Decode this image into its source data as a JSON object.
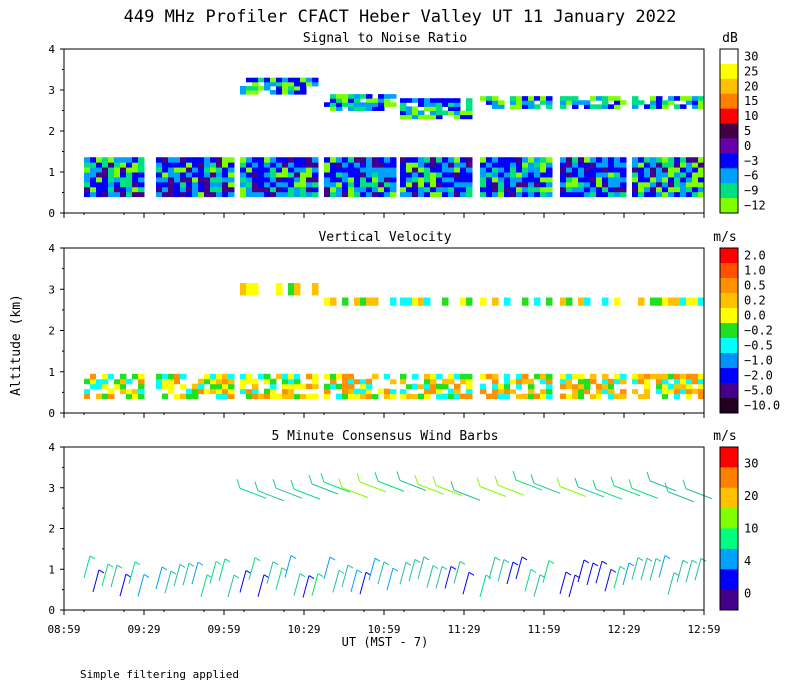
{
  "title": "449 MHz Profiler CFACT Heber Valley UT 11 January 2022",
  "y_axis_label": "Altitude (km)",
  "x_axis_label": "UT  (MST - 7)",
  "footer_note": "Simple filtering applied",
  "chart_data": [
    {
      "type": "heatmap",
      "title": "Signal to Noise Ratio",
      "colorbar_unit": "dB",
      "colorbar_labels": [
        "30",
        "25",
        "20",
        "15",
        "10",
        "5",
        "0",
        "−3",
        "−6",
        "−9",
        "−12"
      ],
      "colorbar_colors": [
        "#ffffff",
        "#ffff00",
        "#ffc000",
        "#ff8000",
        "#ff0000",
        "#440044",
        "#6600aa",
        "#0000ff",
        "#00a0ff",
        "#00e080",
        "#80ff00"
      ],
      "x_ticks": [
        "08:59",
        "09:29",
        "09:59",
        "10:29",
        "10:59",
        "11:29",
        "11:59",
        "12:29",
        "12:59"
      ],
      "ylim": [
        0,
        4
      ],
      "y_ticks": [
        "0",
        "1",
        "2",
        "3",
        "4"
      ],
      "regions": [
        {
          "t0": 0.0,
          "t1": 1.0,
          "y0": 0.35,
          "y1": 1.35,
          "v": -6
        },
        {
          "t0": 2.2,
          "t1": 4.0,
          "y0": 2.3,
          "y1": 3.5,
          "v": -9
        },
        {
          "t0": 4.2,
          "t1": 5.8,
          "y0": 0.35,
          "y1": 1.4,
          "v": -3
        },
        {
          "t0": 5.8,
          "t1": 7.0,
          "y0": 2.4,
          "y1": 3.1,
          "v": -9
        }
      ]
    },
    {
      "type": "heatmap",
      "title": "Vertical Velocity",
      "colorbar_unit": "m/s",
      "colorbar_labels": [
        "2.0",
        "1.0",
        "0.5",
        "0.2",
        "0.0",
        "−0.2",
        "−0.5",
        "−1.0",
        "−2.0",
        "−5.0",
        "−10.0"
      ],
      "colorbar_colors": [
        "#ff0000",
        "#ff5000",
        "#ff9000",
        "#ffc000",
        "#ffff00",
        "#20e020",
        "#00ffff",
        "#0090ff",
        "#0000ff",
        "#440088",
        "#220022"
      ],
      "x_ticks": [
        "08:59",
        "09:29",
        "09:59",
        "10:29",
        "10:59",
        "11:29",
        "11:59",
        "12:29",
        "12:59"
      ],
      "ylim": [
        0,
        4
      ],
      "y_ticks": [
        "0",
        "1",
        "2",
        "3",
        "4"
      ]
    },
    {
      "type": "wind_barbs",
      "title": "5 Minute Consensus Wind Barbs",
      "colorbar_unit": "m/s",
      "colorbar_labels": [
        "30",
        "20",
        "10",
        "4",
        "0"
      ],
      "colorbar_colors": [
        "#ff0000",
        "#ff8000",
        "#ffc000",
        "#80ff00",
        "#00ff80",
        "#00a0ff",
        "#0000ff",
        "#440088"
      ],
      "x_ticks": [
        "08:59",
        "09:29",
        "09:59",
        "10:29",
        "10:59",
        "11:29",
        "11:59",
        "12:29",
        "12:59"
      ],
      "ylim": [
        0,
        4
      ],
      "y_ticks": [
        "0",
        "1",
        "2",
        "3",
        "4"
      ]
    }
  ],
  "colors": {
    "snr_gap": "#ffffff",
    "axis": "#000000"
  }
}
